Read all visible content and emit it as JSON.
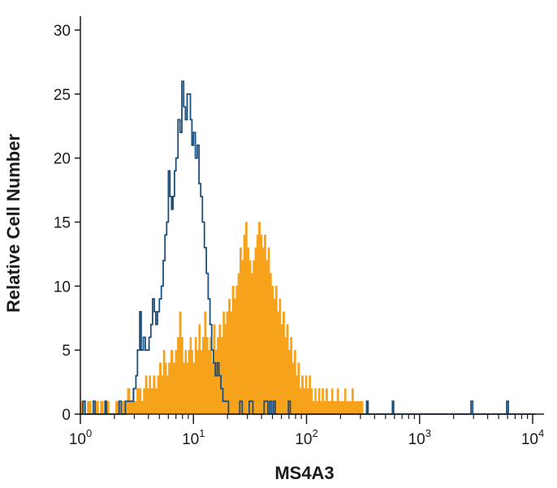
{
  "chart_data": {
    "type": "histogram",
    "xlabel": "MS4A3",
    "ylabel": "Relative Cell Number",
    "x_scale": "log",
    "xlim": [
      1,
      10000
    ],
    "ylim": [
      0,
      30
    ],
    "x_ticks": [
      {
        "value": 1,
        "base": "10",
        "exp": "0"
      },
      {
        "value": 10,
        "base": "10",
        "exp": "1"
      },
      {
        "value": 100,
        "base": "10",
        "exp": "2"
      },
      {
        "value": 1000,
        "base": "10",
        "exp": "3"
      },
      {
        "value": 10000,
        "base": "10",
        "exp": "4"
      }
    ],
    "y_ticks": [
      0,
      5,
      10,
      15,
      20,
      25,
      30
    ],
    "grid": false,
    "series": [
      {
        "style": "filled",
        "color": "#f7a21b",
        "points": [
          [
            1.0,
            1
          ],
          [
            1.1,
            0
          ],
          [
            1.15,
            1
          ],
          [
            1.25,
            0
          ],
          [
            1.35,
            1
          ],
          [
            1.45,
            0
          ],
          [
            1.5,
            1
          ],
          [
            1.6,
            0
          ],
          [
            1.7,
            1
          ],
          [
            1.8,
            0
          ],
          [
            1.95,
            0
          ],
          [
            2.05,
            1
          ],
          [
            2.15,
            1
          ],
          [
            2.25,
            0
          ],
          [
            2.35,
            1
          ],
          [
            2.5,
            1
          ],
          [
            2.6,
            2
          ],
          [
            2.75,
            1
          ],
          [
            2.9,
            2
          ],
          [
            3.0,
            1
          ],
          [
            3.15,
            2
          ],
          [
            3.3,
            2
          ],
          [
            3.45,
            1
          ],
          [
            3.6,
            2
          ],
          [
            3.75,
            3
          ],
          [
            3.9,
            2
          ],
          [
            4.05,
            3
          ],
          [
            4.2,
            2
          ],
          [
            4.4,
            3
          ],
          [
            4.6,
            2
          ],
          [
            4.8,
            3
          ],
          [
            5.0,
            4
          ],
          [
            5.2,
            3
          ],
          [
            5.4,
            5
          ],
          [
            5.6,
            4
          ],
          [
            5.8,
            3
          ],
          [
            6.0,
            4
          ],
          [
            6.3,
            5
          ],
          [
            6.6,
            4
          ],
          [
            6.9,
            5
          ],
          [
            7.2,
            6
          ],
          [
            7.5,
            8
          ],
          [
            7.8,
            6
          ],
          [
            8.1,
            4
          ],
          [
            8.4,
            5
          ],
          [
            8.7,
            4
          ],
          [
            9.0,
            5
          ],
          [
            9.3,
            6
          ],
          [
            9.6,
            5
          ],
          [
            9.9,
            4
          ],
          [
            10.3,
            6
          ],
          [
            10.7,
            5
          ],
          [
            11.1,
            7
          ],
          [
            11.5,
            5
          ],
          [
            12.0,
            6
          ],
          [
            12.5,
            8
          ],
          [
            13.0,
            6
          ],
          [
            13.5,
            5
          ],
          [
            14.0,
            6
          ],
          [
            14.5,
            4
          ],
          [
            15.0,
            7
          ],
          [
            15.6,
            5
          ],
          [
            16.2,
            6
          ],
          [
            16.8,
            7
          ],
          [
            17.5,
            6
          ],
          [
            18.2,
            8
          ],
          [
            18.9,
            7
          ],
          [
            19.6,
            8
          ],
          [
            20.4,
            9
          ],
          [
            21.2,
            8
          ],
          [
            22.0,
            10
          ],
          [
            22.9,
            9
          ],
          [
            23.8,
            10
          ],
          [
            24.7,
            11
          ],
          [
            25.7,
            13
          ],
          [
            26.7,
            12
          ],
          [
            27.7,
            14
          ],
          [
            28.8,
            15
          ],
          [
            29.9,
            13
          ],
          [
            31.1,
            12
          ],
          [
            32.3,
            11
          ],
          [
            33.6,
            12
          ],
          [
            34.9,
            13
          ],
          [
            36.2,
            14
          ],
          [
            37.6,
            15
          ],
          [
            39.1,
            14
          ],
          [
            40.6,
            13
          ],
          [
            42.2,
            14
          ],
          [
            43.8,
            12
          ],
          [
            45.5,
            13
          ],
          [
            47.3,
            11
          ],
          [
            49.1,
            10
          ],
          [
            51.0,
            9
          ],
          [
            53.0,
            10
          ],
          [
            55.1,
            8
          ],
          [
            57.2,
            9
          ],
          [
            59.4,
            7
          ],
          [
            61.7,
            8
          ],
          [
            64.1,
            6
          ],
          [
            66.6,
            7
          ],
          [
            69.2,
            5
          ],
          [
            71.9,
            6
          ],
          [
            74.7,
            4
          ],
          [
            77.6,
            5
          ],
          [
            80.6,
            3
          ],
          [
            83.7,
            4
          ],
          [
            87.0,
            2
          ],
          [
            90.4,
            3
          ],
          [
            93.9,
            2
          ],
          [
            97.5,
            3
          ],
          [
            101,
            2
          ],
          [
            105,
            3
          ],
          [
            109,
            2
          ],
          [
            113,
            1
          ],
          [
            118,
            2
          ],
          [
            122,
            1
          ],
          [
            127,
            2
          ],
          [
            132,
            1
          ],
          [
            137,
            2
          ],
          [
            142,
            1
          ],
          [
            148,
            2
          ],
          [
            154,
            1
          ],
          [
            160,
            1
          ],
          [
            166,
            2
          ],
          [
            172,
            1
          ],
          [
            179,
            1
          ],
          [
            186,
            2
          ],
          [
            193,
            1
          ],
          [
            200,
            1
          ],
          [
            208,
            1
          ],
          [
            216,
            2
          ],
          [
            224,
            1
          ],
          [
            233,
            1
          ],
          [
            242,
            1
          ],
          [
            251,
            2
          ],
          [
            261,
            1
          ],
          [
            271,
            1
          ],
          [
            282,
            1
          ],
          [
            293,
            1
          ],
          [
            304,
            1
          ],
          [
            316,
            0
          ]
        ]
      },
      {
        "style": "outline",
        "color": "#1d4f7c",
        "points": [
          [
            1.0,
            0
          ],
          [
            1.05,
            1
          ],
          [
            1.1,
            0
          ],
          [
            1.25,
            0
          ],
          [
            1.3,
            1
          ],
          [
            1.35,
            0
          ],
          [
            1.6,
            0
          ],
          [
            1.65,
            1
          ],
          [
            1.7,
            0
          ],
          [
            2.1,
            0
          ],
          [
            2.2,
            1
          ],
          [
            2.3,
            0
          ],
          [
            2.5,
            1
          ],
          [
            2.65,
            1
          ],
          [
            2.8,
            1
          ],
          [
            2.95,
            2
          ],
          [
            3.1,
            3
          ],
          [
            3.2,
            5
          ],
          [
            3.35,
            8
          ],
          [
            3.45,
            5
          ],
          [
            3.6,
            6
          ],
          [
            3.75,
            5
          ],
          [
            3.9,
            5
          ],
          [
            4.05,
            6
          ],
          [
            4.2,
            7
          ],
          [
            4.35,
            9
          ],
          [
            4.5,
            8
          ],
          [
            4.65,
            7
          ],
          [
            4.8,
            8
          ],
          [
            5.0,
            9
          ],
          [
            5.2,
            10
          ],
          [
            5.4,
            12
          ],
          [
            5.6,
            14
          ],
          [
            5.8,
            15
          ],
          [
            6.0,
            19
          ],
          [
            6.2,
            17
          ],
          [
            6.4,
            16
          ],
          [
            6.6,
            17
          ],
          [
            6.8,
            19
          ],
          [
            7.0,
            20
          ],
          [
            7.3,
            23
          ],
          [
            7.6,
            22
          ],
          [
            7.9,
            26
          ],
          [
            8.2,
            24
          ],
          [
            8.5,
            23
          ],
          [
            8.8,
            25
          ],
          [
            9.1,
            25
          ],
          [
            9.4,
            23
          ],
          [
            9.7,
            21
          ],
          [
            10.0,
            22
          ],
          [
            10.4,
            20
          ],
          [
            10.8,
            21
          ],
          [
            11.2,
            18
          ],
          [
            11.6,
            17
          ],
          [
            12.0,
            15
          ],
          [
            12.5,
            13
          ],
          [
            13.0,
            11
          ],
          [
            13.5,
            9
          ],
          [
            14.0,
            7
          ],
          [
            14.5,
            5
          ],
          [
            15.0,
            4
          ],
          [
            15.6,
            3
          ],
          [
            16.2,
            4
          ],
          [
            16.8,
            3
          ],
          [
            17.5,
            2
          ],
          [
            18.2,
            1
          ],
          [
            18.9,
            1
          ],
          [
            19.6,
            1
          ],
          [
            20.4,
            0
          ],
          [
            24,
            0
          ],
          [
            25.7,
            1
          ],
          [
            27.0,
            0
          ],
          [
            29.9,
            0
          ],
          [
            31.1,
            1
          ],
          [
            33.6,
            0
          ],
          [
            40.6,
            0
          ],
          [
            42.2,
            1
          ],
          [
            45.5,
            0
          ],
          [
            47.3,
            1
          ],
          [
            49.1,
            0
          ],
          [
            51.0,
            1
          ],
          [
            53.0,
            0
          ],
          [
            66.6,
            0
          ],
          [
            69.2,
            1
          ],
          [
            71.9,
            0
          ],
          [
            330,
            0
          ],
          [
            340,
            1
          ],
          [
            350,
            0
          ],
          [
            560,
            0
          ],
          [
            575,
            1
          ],
          [
            590,
            0
          ],
          [
            2800,
            0
          ],
          [
            2850,
            1
          ],
          [
            2950,
            0
          ],
          [
            5800,
            0
          ],
          [
            5900,
            1
          ],
          [
            6100,
            0
          ],
          [
            10000,
            0
          ]
        ]
      }
    ]
  }
}
